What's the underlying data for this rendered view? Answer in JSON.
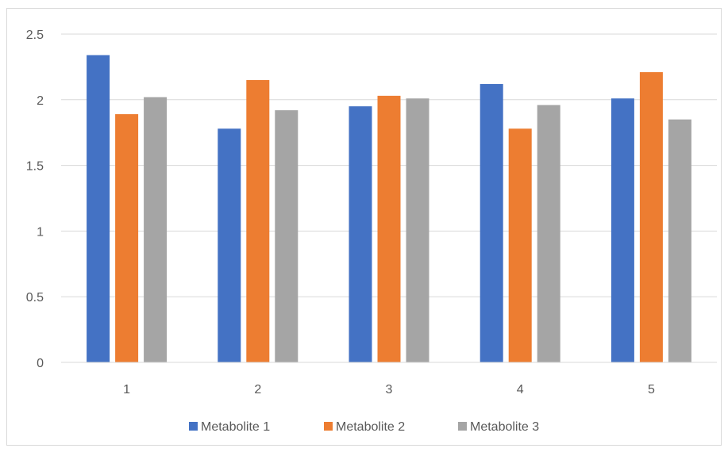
{
  "chart_data": {
    "type": "bar",
    "title": "",
    "xlabel": "",
    "ylabel": "",
    "categories": [
      "1",
      "2",
      "3",
      "4",
      "5"
    ],
    "ylim": [
      0,
      2.5
    ],
    "yticks": [
      "0",
      "0.5",
      "1",
      "1.5",
      "2",
      "2.5"
    ],
    "grid": true,
    "legend_position": "bottom",
    "series": [
      {
        "name": "Metabolite 1",
        "color": "#4472c4",
        "values": [
          2.34,
          1.78,
          1.95,
          2.12,
          2.01
        ]
      },
      {
        "name": "Metabolite 2",
        "color": "#ed7d31",
        "values": [
          1.89,
          2.15,
          2.03,
          1.78,
          2.21
        ]
      },
      {
        "name": "Metabolite 3",
        "color": "#a5a5a5",
        "values": [
          2.02,
          1.92,
          2.01,
          1.96,
          1.85
        ]
      }
    ]
  }
}
